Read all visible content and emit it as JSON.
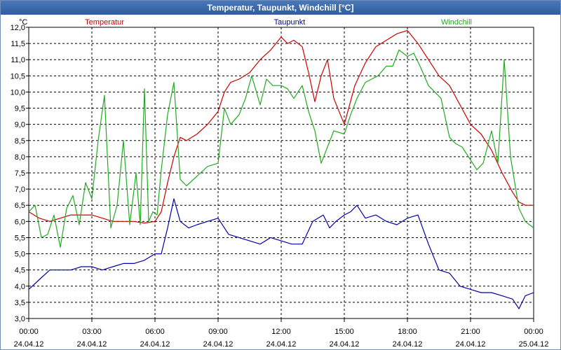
{
  "window": {
    "title": "Temperatur, Taupunkt, Windchill [°C]"
  },
  "chart_data": {
    "type": "line",
    "title": "Temperatur, Taupunkt, Windchill [°C]",
    "ylabel": "°C",
    "ylim": [
      3.0,
      12.0
    ],
    "yticks": [
      "12,0",
      "11,5",
      "11,0",
      "10,5",
      "10,0",
      "9,5",
      "9,0",
      "8,5",
      "8,0",
      "7,5",
      "7,0",
      "6,5",
      "6,0",
      "5,5",
      "5,0",
      "4,5",
      "4,0",
      "3,5",
      "3,0"
    ],
    "xlim": [
      0,
      24
    ],
    "xticks": [
      {
        "time": "00:00",
        "date": "24.04.12"
      },
      {
        "time": "03:00",
        "date": "24.04.12"
      },
      {
        "time": "06:00",
        "date": "24.04.12"
      },
      {
        "time": "09:00",
        "date": "24.04.12"
      },
      {
        "time": "12:00",
        "date": "24.04.12"
      },
      {
        "time": "15:00",
        "date": "24.04.12"
      },
      {
        "time": "18:00",
        "date": "24.04.12"
      },
      {
        "time": "21:00",
        "date": "24.04.12"
      },
      {
        "time": "00:00",
        "date": "25.04.12"
      }
    ],
    "grid": true,
    "legend": "top",
    "series": [
      {
        "name": "Temperatur",
        "color": "#cc0000",
        "x": [
          0,
          0.5,
          1,
          1.5,
          2,
          2.5,
          3,
          3.5,
          4,
          4.5,
          5,
          5.5,
          6,
          6.3,
          6.6,
          6.9,
          7.2,
          7.5,
          8,
          8.5,
          9,
          9.3,
          9.6,
          10,
          10.5,
          11,
          11.5,
          12,
          12.3,
          12.6,
          13,
          13.3,
          13.6,
          13.9,
          14.2,
          14.5,
          15,
          15.5,
          16,
          16.5,
          17,
          17.5,
          18,
          18.5,
          19,
          19.5,
          20,
          20.5,
          21,
          21.5,
          22,
          22.5,
          23,
          23.3,
          23.6,
          24
        ],
        "values": [
          6.3,
          6.1,
          6.0,
          6.1,
          6.2,
          6.2,
          6.2,
          6.1,
          6.0,
          6.0,
          6.0,
          5.95,
          6.0,
          6.3,
          7.2,
          8.0,
          8.6,
          8.5,
          8.7,
          9.0,
          9.4,
          10.0,
          10.3,
          10.4,
          10.6,
          11.0,
          11.3,
          11.7,
          11.5,
          11.6,
          11.4,
          10.6,
          9.7,
          10.5,
          11.0,
          9.8,
          9.0,
          10.2,
          10.9,
          11.4,
          11.6,
          11.8,
          11.9,
          11.5,
          11.0,
          10.5,
          10.2,
          9.6,
          9.0,
          8.7,
          8.2,
          7.5,
          6.9,
          6.6,
          6.5,
          6.5
        ]
      },
      {
        "name": "Taupunkt",
        "color": "#0000aa",
        "x": [
          0,
          0.5,
          1,
          1.5,
          2,
          2.5,
          3,
          3.5,
          4,
          4.5,
          5,
          5.5,
          6,
          6.3,
          6.6,
          6.9,
          7.2,
          7.6,
          8,
          8.5,
          9,
          9.5,
          10,
          10.5,
          11,
          11.5,
          12,
          12.5,
          13,
          13.5,
          14,
          14.3,
          14.6,
          15,
          15.3,
          15.6,
          16,
          16.5,
          17,
          17.5,
          18,
          18.5,
          19,
          19.5,
          20,
          20.5,
          21,
          21.5,
          22,
          22.5,
          23,
          23.3,
          23.6,
          24
        ],
        "values": [
          3.9,
          4.2,
          4.5,
          4.5,
          4.5,
          4.6,
          4.6,
          4.5,
          4.6,
          4.7,
          4.7,
          4.8,
          5.0,
          5.0,
          5.8,
          6.7,
          6.0,
          5.8,
          5.9,
          6.0,
          6.1,
          5.6,
          5.5,
          5.4,
          5.3,
          5.5,
          5.4,
          5.3,
          5.3,
          6.0,
          6.2,
          5.8,
          6.0,
          6.2,
          6.3,
          6.5,
          6.1,
          6.2,
          6.0,
          5.9,
          6.1,
          6.2,
          5.3,
          4.5,
          4.4,
          4.0,
          3.9,
          3.8,
          3.8,
          3.7,
          3.6,
          3.3,
          3.7,
          3.8
        ]
      },
      {
        "name": "Windchill",
        "color": "#22aa22",
        "x": [
          0,
          0.3,
          0.6,
          0.9,
          1.2,
          1.5,
          1.8,
          2.1,
          2.4,
          2.7,
          3.0,
          3.3,
          3.6,
          3.9,
          4.2,
          4.5,
          4.8,
          5.1,
          5.3,
          5.5,
          5.7,
          5.9,
          6.1,
          6.3,
          6.6,
          6.9,
          7.2,
          7.5,
          8,
          8.5,
          9,
          9.3,
          9.6,
          10,
          10.3,
          10.6,
          11,
          11.3,
          11.6,
          12,
          12.3,
          12.6,
          13,
          13.3,
          13.6,
          13.9,
          14.2,
          14.5,
          15,
          15.3,
          15.6,
          16,
          16.3,
          16.6,
          17,
          17.3,
          17.6,
          18,
          18.3,
          18.6,
          19,
          19.3,
          19.6,
          20,
          20.3,
          20.6,
          21,
          21.3,
          21.6,
          22,
          22.3,
          22.6,
          22.9,
          23.1,
          23.3,
          23.6,
          24
        ],
        "values": [
          6.3,
          6.5,
          5.5,
          5.6,
          6.2,
          5.2,
          6.4,
          6.8,
          5.9,
          7.2,
          6.7,
          8.5,
          9.9,
          5.8,
          6.5,
          8.5,
          5.9,
          7.5,
          5.9,
          10.1,
          6.0,
          6.3,
          6.2,
          7.6,
          9.3,
          10.3,
          7.3,
          7.1,
          7.4,
          7.7,
          7.8,
          9.5,
          9.0,
          9.3,
          9.8,
          10.5,
          9.6,
          10.4,
          10.2,
          10.2,
          10.1,
          9.8,
          10.2,
          9.4,
          8.8,
          7.8,
          8.3,
          8.8,
          8.7,
          9.3,
          9.8,
          10.3,
          10.4,
          10.5,
          10.8,
          10.8,
          11.3,
          11.1,
          11.2,
          10.8,
          10.2,
          10.0,
          9.8,
          8.6,
          8.4,
          8.3,
          7.9,
          7.6,
          7.8,
          8.8,
          7.8,
          11.0,
          8.0,
          7.2,
          6.4,
          6.0,
          5.8
        ]
      }
    ]
  }
}
